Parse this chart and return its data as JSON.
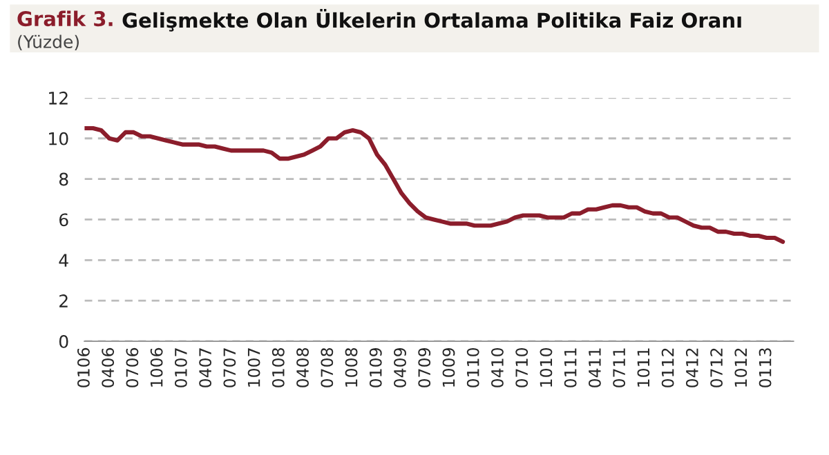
{
  "chart_data": {
    "type": "line",
    "title": "Grafik 3. Gelişmekte Olan Ülkelerin Ortalama Politika Faiz Oranı",
    "subtitle": "(Yüzde)",
    "categories": [
      "0106",
      null,
      null,
      "0406",
      null,
      null,
      "0706",
      null,
      null,
      "1006",
      null,
      null,
      "0107",
      null,
      null,
      "0407",
      null,
      null,
      "0707",
      null,
      null,
      "1007",
      null,
      null,
      "0108",
      null,
      null,
      "0408",
      null,
      null,
      "0708",
      null,
      null,
      "1008",
      null,
      null,
      "0109",
      null,
      null,
      "0409",
      null,
      null,
      "0709",
      null,
      null,
      "1009",
      null,
      null,
      "0110",
      null,
      null,
      "0410",
      null,
      null,
      "0710",
      null,
      null,
      "1010",
      null,
      null,
      "0111",
      null,
      null,
      "0411",
      null,
      null,
      "0711",
      null,
      null,
      "1011",
      null,
      null,
      "0112",
      null,
      null,
      "0412",
      null,
      null,
      "0712",
      null,
      null,
      "1012",
      null,
      null,
      "0113",
      null,
      null
    ],
    "series": [
      {
        "color": "#8b1d2b",
        "values": [
          10.5,
          10.5,
          10.4,
          10.0,
          9.9,
          10.3,
          10.3,
          10.1,
          10.1,
          10.0,
          9.9,
          9.8,
          9.7,
          9.7,
          9.7,
          9.6,
          9.6,
          9.5,
          9.4,
          9.4,
          9.4,
          9.4,
          9.4,
          9.3,
          9.0,
          9.0,
          9.1,
          9.2,
          9.4,
          9.6,
          10.0,
          10.0,
          10.3,
          10.4,
          10.3,
          10.0,
          9.2,
          8.7,
          8.0,
          7.3,
          6.8,
          6.4,
          6.1,
          6.0,
          5.9,
          5.8,
          5.8,
          5.8,
          5.7,
          5.7,
          5.7,
          5.8,
          5.9,
          6.1,
          6.2,
          6.2,
          6.2,
          6.1,
          6.1,
          6.1,
          6.3,
          6.3,
          6.5,
          6.5,
          6.6,
          6.7,
          6.7,
          6.6,
          6.6,
          6.4,
          6.3,
          6.3,
          6.1,
          6.1,
          5.9,
          5.7,
          5.6,
          5.6,
          5.4,
          5.4,
          5.3,
          5.3,
          5.2,
          5.2,
          5.1,
          5.1,
          4.9
        ]
      }
    ],
    "ylim": [
      0,
      12
    ],
    "yticks": [
      0,
      2,
      4,
      6,
      8,
      10,
      12
    ],
    "grid": "y",
    "line_style": "solid",
    "marker": "none"
  }
}
